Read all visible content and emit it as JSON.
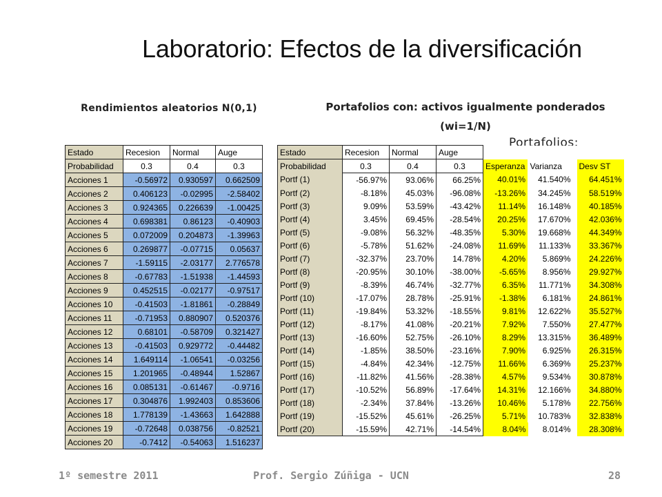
{
  "title": "Laboratorio: Efectos de la diversificación",
  "left_heading": "Rendimientos aleatorios N(0,1)",
  "right_heading": "Portafolios con: activos igualmente ponderados (wi=1/N)",
  "portfolios_label": "Portafolios:",
  "left_table": {
    "headers": [
      "Estado",
      "Recesion",
      "Normal",
      "Auge"
    ],
    "probability_label": "Probabilidad",
    "probabilities": [
      "0.3",
      "0.4",
      "0.3"
    ],
    "rows": [
      [
        "Acciones 1",
        "-0.56972",
        "0.930597",
        "0.662509"
      ],
      [
        "Acciones 2",
        "0.406123",
        "-0.02995",
        "-2.58402"
      ],
      [
        "Acciones 3",
        "0.924365",
        "0.226639",
        "-1.00425"
      ],
      [
        "Acciones 4",
        "0.698381",
        "0.86123",
        "-0.40903"
      ],
      [
        "Acciones 5",
        "0.072009",
        "0.204873",
        "-1.39963"
      ],
      [
        "Acciones 6",
        "0.269877",
        "-0.07715",
        "0.05637"
      ],
      [
        "Acciones 7",
        "-1.59115",
        "-2.03177",
        "2.776578"
      ],
      [
        "Acciones 8",
        "-0.67783",
        "-1.51938",
        "-1.44593"
      ],
      [
        "Acciones 9",
        "0.452515",
        "-0.02177",
        "-0.97517"
      ],
      [
        "Acciones 10",
        "-0.41503",
        "-1.81861",
        "-0.28849"
      ],
      [
        "Acciones 11",
        "-0.71953",
        "0.880907",
        "0.520376"
      ],
      [
        "Acciones 12",
        "0.68101",
        "-0.58709",
        "0.321427"
      ],
      [
        "Acciones 13",
        "-0.41503",
        "0.929772",
        "-0.44482"
      ],
      [
        "Acciones 14",
        "1.649114",
        "-1.06541",
        "-0.03256"
      ],
      [
        "Acciones 15",
        "1.201965",
        "-0.48944",
        "1.52867"
      ],
      [
        "Acciones 16",
        "0.085131",
        "-0.61467",
        "-0.9716"
      ],
      [
        "Acciones 17",
        "0.304876",
        "1.992403",
        "0.853606"
      ],
      [
        "Acciones 18",
        "1.778139",
        "-1.43663",
        "1.642888"
      ],
      [
        "Acciones 19",
        "-0.72648",
        "0.038756",
        "-0.82521"
      ],
      [
        "Acciones 20",
        "-0.7412",
        "-0.54063",
        "1.516237"
      ]
    ]
  },
  "right_table": {
    "headers": [
      "Estado",
      "Recesion",
      "Normal",
      "Auge"
    ],
    "probability_label": "Probabilidad",
    "probabilities": [
      "0.3",
      "0.4",
      "0.3"
    ],
    "stat_headers": [
      "Esperanza",
      "Varianza",
      "Desv ST"
    ],
    "rows": [
      [
        "Portf (1)",
        "-56.97%",
        "93.06%",
        "66.25%",
        "40.01%",
        "41.540%",
        "64.451%"
      ],
      [
        "Portf (2)",
        "-8.18%",
        "45.03%",
        "-96.08%",
        "-13.26%",
        "34.245%",
        "58.519%"
      ],
      [
        "Portf (3)",
        "9.09%",
        "53.59%",
        "-43.42%",
        "11.14%",
        "16.148%",
        "40.185%"
      ],
      [
        "Portf (4)",
        "3.45%",
        "69.45%",
        "-28.54%",
        "20.25%",
        "17.670%",
        "42.036%"
      ],
      [
        "Portf (5)",
        "-9.08%",
        "56.32%",
        "-48.35%",
        "5.30%",
        "19.668%",
        "44.349%"
      ],
      [
        "Portf (6)",
        "-5.78%",
        "51.62%",
        "-24.08%",
        "11.69%",
        "11.133%",
        "33.367%"
      ],
      [
        "Portf (7)",
        "-32.37%",
        "23.70%",
        "14.78%",
        "4.20%",
        "5.869%",
        "24.226%"
      ],
      [
        "Portf (8)",
        "-20.95%",
        "30.10%",
        "-38.00%",
        "-5.65%",
        "8.956%",
        "29.927%"
      ],
      [
        "Portf (9)",
        "-8.39%",
        "46.74%",
        "-32.77%",
        "6.35%",
        "11.771%",
        "34.308%"
      ],
      [
        "Portf (10)",
        "-17.07%",
        "28.78%",
        "-25.91%",
        "-1.38%",
        "6.181%",
        "24.861%"
      ],
      [
        "Portf (11)",
        "-19.84%",
        "53.32%",
        "-18.55%",
        "9.81%",
        "12.622%",
        "35.527%"
      ],
      [
        "Portf (12)",
        "-8.17%",
        "41.08%",
        "-20.21%",
        "7.92%",
        "7.550%",
        "27.477%"
      ],
      [
        "Portf (13)",
        "-16.60%",
        "52.75%",
        "-26.10%",
        "8.29%",
        "13.315%",
        "36.489%"
      ],
      [
        "Portf (14)",
        "-1.85%",
        "38.50%",
        "-23.16%",
        "7.90%",
        "6.925%",
        "26.315%"
      ],
      [
        "Portf (15)",
        "-4.84%",
        "42.34%",
        "-12.75%",
        "11.66%",
        "6.369%",
        "25.237%"
      ],
      [
        "Portf (16)",
        "-11.82%",
        "41.56%",
        "-28.38%",
        "4.57%",
        "9.534%",
        "30.878%"
      ],
      [
        "Portf (17)",
        "-10.52%",
        "56.89%",
        "-17.64%",
        "14.31%",
        "12.166%",
        "34.880%"
      ],
      [
        "Portf (18)",
        "-2.34%",
        "37.84%",
        "-13.26%",
        "10.46%",
        "5.178%",
        "22.756%"
      ],
      [
        "Portf (19)",
        "-15.52%",
        "45.61%",
        "-26.25%",
        "5.71%",
        "10.783%",
        "32.838%"
      ],
      [
        "Portf (20)",
        "-15.59%",
        "42.71%",
        "-14.54%",
        "8.04%",
        "8.014%",
        "28.308%"
      ]
    ]
  },
  "footer": {
    "left": "1º semestre 2011",
    "center": "Prof. Sergio Zúñiga - UCN",
    "page": "28"
  },
  "colors": {
    "label_cell": "#dcd7bf",
    "value_cell": "#8eb3e3",
    "highlight": "#ffff00"
  }
}
